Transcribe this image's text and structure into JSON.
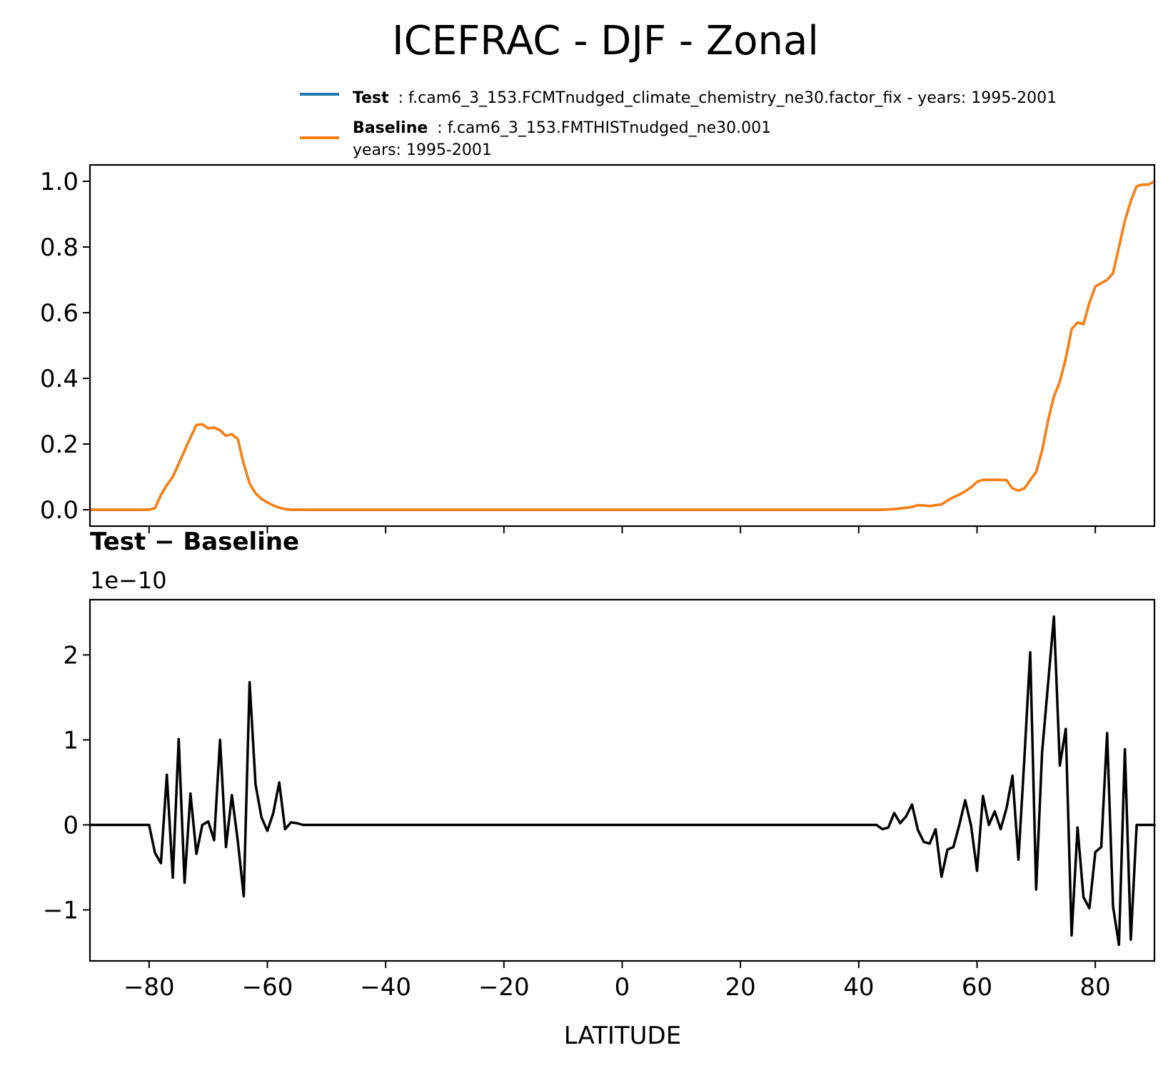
{
  "figure": {
    "title": "ICEFRAC - DJF - Zonal"
  },
  "legend": {
    "test": {
      "label": "Test",
      "desc": ": f.cam6_3_153.FCMTnudged_climate_chemistry_ne30.factor_fix - years: 1995-2001",
      "color": "#1f77b4"
    },
    "baseline": {
      "label": "Baseline",
      "desc": ": f.cam6_3_153.FMTHISTnudged_ne30.001",
      "desc2": "years: 1995-2001",
      "color": "#ff7f0e"
    }
  },
  "chart_data": [
    {
      "type": "line",
      "panel": "top",
      "xlim": [
        -90,
        90
      ],
      "ylim": [
        -0.05,
        1.05
      ],
      "yticks": [
        0.0,
        0.2,
        0.4,
        0.6,
        0.8,
        1.0
      ],
      "ytick_labels": [
        "0.0",
        "0.2",
        "0.4",
        "0.6",
        "0.8",
        "1.0"
      ],
      "xticks": [
        -80,
        -60,
        -40,
        -20,
        0,
        20,
        40,
        60,
        80
      ],
      "series": [
        {
          "name": "Test",
          "color": "#1f77b4",
          "x": [
            -90,
            -80,
            -79,
            -78,
            -77,
            -76,
            -75,
            -74,
            -73,
            -72,
            -71,
            -70,
            -69,
            -68,
            -67,
            -66,
            -65,
            -64,
            -63,
            -62,
            -61,
            -60,
            -59,
            -58,
            -57,
            -56,
            -55,
            -40,
            0,
            40,
            44,
            46,
            48,
            49,
            50,
            51,
            52,
            53,
            54,
            55,
            56,
            57,
            58,
            59,
            60,
            61,
            62,
            63,
            64,
            65,
            66,
            67,
            68,
            69,
            70,
            71,
            72,
            73,
            74,
            75,
            76,
            77,
            78,
            79,
            80,
            81,
            82,
            83,
            84,
            85,
            86,
            87,
            88,
            89,
            90
          ],
          "y": [
            0,
            0,
            0.005,
            0.045,
            0.075,
            0.1,
            0.14,
            0.18,
            0.22,
            0.258,
            0.26,
            0.248,
            0.25,
            0.242,
            0.225,
            0.23,
            0.215,
            0.14,
            0.08,
            0.05,
            0.033,
            0.022,
            0.013,
            0.006,
            0.002,
            0,
            0,
            0,
            0,
            0,
            0,
            0.002,
            0.006,
            0.008,
            0.014,
            0.013,
            0.011,
            0.014,
            0.016,
            0.028,
            0.038,
            0.046,
            0.056,
            0.068,
            0.085,
            0.091,
            0.091,
            0.091,
            0.091,
            0.09,
            0.065,
            0.058,
            0.065,
            0.09,
            0.115,
            0.18,
            0.27,
            0.345,
            0.39,
            0.46,
            0.55,
            0.57,
            0.565,
            0.63,
            0.68,
            0.69,
            0.7,
            0.72,
            0.8,
            0.88,
            0.94,
            0.985,
            0.99,
            0.99,
            1.0
          ]
        },
        {
          "name": "Baseline",
          "color": "#ff7f0e",
          "x": [
            -90,
            -80,
            -79,
            -78,
            -77,
            -76,
            -75,
            -74,
            -73,
            -72,
            -71,
            -70,
            -69,
            -68,
            -67,
            -66,
            -65,
            -64,
            -63,
            -62,
            -61,
            -60,
            -59,
            -58,
            -57,
            -56,
            -55,
            -40,
            0,
            40,
            44,
            46,
            48,
            49,
            50,
            51,
            52,
            53,
            54,
            55,
            56,
            57,
            58,
            59,
            60,
            61,
            62,
            63,
            64,
            65,
            66,
            67,
            68,
            69,
            70,
            71,
            72,
            73,
            74,
            75,
            76,
            77,
            78,
            79,
            80,
            81,
            82,
            83,
            84,
            85,
            86,
            87,
            88,
            89,
            90
          ],
          "y": [
            0,
            0,
            0.005,
            0.045,
            0.075,
            0.1,
            0.14,
            0.18,
            0.22,
            0.258,
            0.26,
            0.248,
            0.25,
            0.242,
            0.225,
            0.23,
            0.215,
            0.14,
            0.08,
            0.05,
            0.033,
            0.022,
            0.013,
            0.006,
            0.002,
            0,
            0,
            0,
            0,
            0,
            0,
            0.002,
            0.006,
            0.008,
            0.014,
            0.013,
            0.011,
            0.014,
            0.016,
            0.028,
            0.038,
            0.046,
            0.056,
            0.068,
            0.085,
            0.091,
            0.091,
            0.091,
            0.091,
            0.09,
            0.065,
            0.058,
            0.065,
            0.09,
            0.115,
            0.18,
            0.27,
            0.345,
            0.39,
            0.46,
            0.55,
            0.57,
            0.565,
            0.63,
            0.68,
            0.69,
            0.7,
            0.72,
            0.8,
            0.88,
            0.94,
            0.985,
            0.99,
            0.99,
            1.0
          ]
        }
      ]
    },
    {
      "type": "line",
      "panel": "bottom",
      "title": "Test − Baseline",
      "offset_text": "1e−10",
      "xlabel": "LATITUDE",
      "xlim": [
        -90,
        90
      ],
      "ylim": [
        -1.6,
        2.65
      ],
      "yticks": [
        -1,
        0,
        1,
        2
      ],
      "ytick_labels": [
        "−1",
        "0",
        "1",
        "2"
      ],
      "xticks": [
        -80,
        -60,
        -40,
        -20,
        0,
        20,
        40,
        60,
        80
      ],
      "xtick_labels": [
        "−80",
        "−60",
        "−40",
        "−20",
        "0",
        "20",
        "40",
        "60",
        "80"
      ],
      "series": [
        {
          "name": "Test - Baseline",
          "color": "#000000",
          "x": [
            -90,
            -80,
            -79,
            -78,
            -77,
            -76,
            -75,
            -74,
            -73,
            -72,
            -71,
            -70,
            -69,
            -68,
            -67,
            -66,
            -65,
            -64,
            -63,
            -62,
            -61,
            -60,
            -59,
            -58,
            -57,
            -56,
            -55,
            -54,
            -53,
            0,
            40,
            42,
            43,
            44,
            45,
            46,
            47,
            48,
            49,
            50,
            51,
            52,
            53,
            54,
            55,
            56,
            57,
            58,
            59,
            60,
            61,
            62,
            63,
            64,
            65,
            66,
            67,
            68,
            69,
            70,
            71,
            72,
            73,
            74,
            75,
            76,
            77,
            78,
            79,
            80,
            81,
            82,
            83,
            84,
            85,
            86,
            87,
            88,
            89,
            90
          ],
          "y": [
            0,
            0,
            -0.33,
            -0.45,
            0.59,
            -0.62,
            1.01,
            -0.68,
            0.37,
            -0.34,
            0,
            0.04,
            -0.18,
            1,
            -0.26,
            0.35,
            -0.19,
            -0.84,
            1.68,
            0.48,
            0.09,
            -0.07,
            0.14,
            0.5,
            -0.05,
            0.03,
            0.02,
            0,
            0,
            0,
            0,
            0,
            0,
            -0.05,
            -0.03,
            0.14,
            0.02,
            0.1,
            0.24,
            -0.06,
            -0.2,
            -0.22,
            -0.05,
            -0.61,
            -0.29,
            -0.26,
            0,
            0.29,
            -0.01,
            -0.54,
            0.34,
            0,
            0.16,
            -0.05,
            0.2,
            0.58,
            -0.41,
            0.78,
            2.03,
            -0.76,
            0.85,
            1.65,
            2.45,
            0.7,
            1.13,
            -1.3,
            -0.03,
            -0.85,
            -0.98,
            -0.32,
            -0.26,
            1.08,
            -0.96,
            -1.41,
            0.89,
            -1.35,
            0,
            0,
            0,
            0
          ]
        }
      ]
    }
  ]
}
